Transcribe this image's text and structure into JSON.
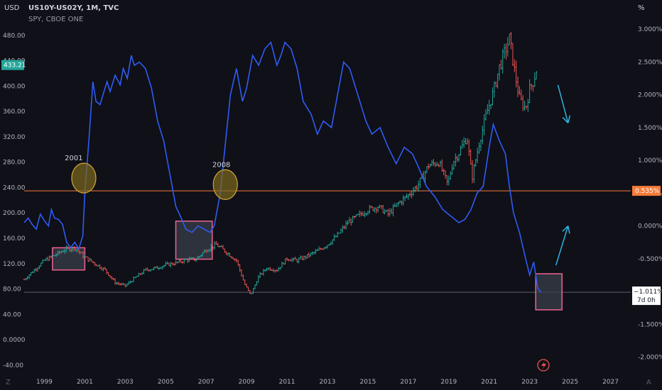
{
  "header": {
    "left_unit": "USD",
    "right_unit": "%",
    "symbol": "US10Y-US02Y, 1M, TVC",
    "sub_symbol": "SPY, CBOE ONE"
  },
  "corner_labels": {
    "bottom_left": "Z",
    "bottom_right": "A"
  },
  "price_badges": {
    "spy_last": "433.21",
    "level_line": "0.535%",
    "spread_last": "−1.011%",
    "countdown": "7d 0h"
  },
  "colors": {
    "background": "#0f1018",
    "spread_line": "#2f5cf5",
    "up_bar": "#26a69a",
    "down_bar": "#ef5350",
    "level_line": "#f57c3a",
    "circle_fill": "#7d6a1c",
    "circle_stroke": "#d4a53b",
    "box_stroke": "#f06292",
    "box_fill": "#3a3d4a",
    "arrow": "#2bb5e0",
    "badge_green": "#26a69a"
  },
  "annotations": [
    {
      "type": "text",
      "text": "2001"
    },
    {
      "type": "text",
      "text": "2008"
    },
    {
      "type": "icon",
      "name": "lightning-icon"
    }
  ],
  "chart_data": {
    "type": "line",
    "x_ticks": [
      "1999",
      "2001",
      "2003",
      "2005",
      "2007",
      "2009",
      "2011",
      "2013",
      "2015",
      "2017",
      "2019",
      "2021",
      "2023",
      "2025",
      "2027"
    ],
    "x_range": [
      1998.0,
      2028.0
    ],
    "y_left": {
      "label": "USD",
      "ticks": [
        "480.00",
        "440.00",
        "400.00",
        "360.00",
        "320.00",
        "280.00",
        "240.00",
        "200.00",
        "160.00",
        "120.00",
        "80.00",
        "40.00",
        "0.0000",
        "-40.00"
      ],
      "range": [
        -48,
        500
      ]
    },
    "y_right": {
      "label": "%",
      "ticks": [
        "3.000%",
        "2.500%",
        "2.000%",
        "1.500%",
        "1.000%",
        "0.500%",
        "0.000%",
        "-0.500%",
        "-1.000%",
        "-1.500%",
        "-2.000%"
      ],
      "range": [
        -2.2,
        3.1
      ]
    },
    "series": [
      {
        "name": "US10Y-US02Y",
        "axis": "right",
        "points": [
          [
            1998.0,
            0.05
          ],
          [
            1998.2,
            0.12
          ],
          [
            1998.4,
            0.02
          ],
          [
            1998.6,
            -0.05
          ],
          [
            1998.8,
            0.18
          ],
          [
            1999.0,
            0.08
          ],
          [
            1999.2,
            0.0
          ],
          [
            1999.35,
            0.25
          ],
          [
            1999.5,
            0.12
          ],
          [
            1999.7,
            0.1
          ],
          [
            1999.9,
            0.02
          ],
          [
            2000.1,
            -0.25
          ],
          [
            2000.3,
            -0.33
          ],
          [
            2000.5,
            -0.25
          ],
          [
            2000.7,
            -0.35
          ],
          [
            2000.9,
            -0.15
          ],
          [
            2001.0,
            0.5
          ],
          [
            2001.2,
            1.3
          ],
          [
            2001.4,
            2.2
          ],
          [
            2001.55,
            1.9
          ],
          [
            2001.75,
            1.85
          ],
          [
            2001.9,
            2.0
          ],
          [
            2002.1,
            2.2
          ],
          [
            2002.25,
            2.05
          ],
          [
            2002.5,
            2.3
          ],
          [
            2002.75,
            2.15
          ],
          [
            2002.9,
            2.4
          ],
          [
            2003.1,
            2.25
          ],
          [
            2003.3,
            2.6
          ],
          [
            2003.45,
            2.45
          ],
          [
            2003.7,
            2.5
          ],
          [
            2004.0,
            2.4
          ],
          [
            2004.3,
            2.1
          ],
          [
            2004.6,
            1.6
          ],
          [
            2004.9,
            1.3
          ],
          [
            2005.2,
            0.8
          ],
          [
            2005.5,
            0.3
          ],
          [
            2005.8,
            0.1
          ],
          [
            2006.0,
            -0.05
          ],
          [
            2006.3,
            -0.1
          ],
          [
            2006.6,
            0.0
          ],
          [
            2006.9,
            -0.05
          ],
          [
            2007.2,
            -0.1
          ],
          [
            2007.4,
            0.0
          ],
          [
            2007.7,
            0.5
          ],
          [
            2007.9,
            1.1
          ],
          [
            2008.2,
            2.0
          ],
          [
            2008.5,
            2.4
          ],
          [
            2008.8,
            1.9
          ],
          [
            2009.0,
            2.1
          ],
          [
            2009.3,
            2.6
          ],
          [
            2009.6,
            2.45
          ],
          [
            2009.9,
            2.7
          ],
          [
            2010.2,
            2.8
          ],
          [
            2010.5,
            2.45
          ],
          [
            2010.7,
            2.6
          ],
          [
            2010.9,
            2.8
          ],
          [
            2011.2,
            2.7
          ],
          [
            2011.5,
            2.4
          ],
          [
            2011.8,
            1.9
          ],
          [
            2012.2,
            1.7
          ],
          [
            2012.5,
            1.4
          ],
          [
            2012.8,
            1.6
          ],
          [
            2013.2,
            1.5
          ],
          [
            2013.5,
            2.0
          ],
          [
            2013.8,
            2.5
          ],
          [
            2014.1,
            2.4
          ],
          [
            2014.4,
            2.1
          ],
          [
            2014.7,
            1.8
          ],
          [
            2014.9,
            1.6
          ],
          [
            2015.2,
            1.4
          ],
          [
            2015.6,
            1.5
          ],
          [
            2016.0,
            1.2
          ],
          [
            2016.4,
            0.95
          ],
          [
            2016.8,
            1.2
          ],
          [
            2017.2,
            1.1
          ],
          [
            2017.5,
            0.9
          ],
          [
            2017.9,
            0.6
          ],
          [
            2018.3,
            0.45
          ],
          [
            2018.7,
            0.25
          ],
          [
            2019.1,
            0.15
          ],
          [
            2019.5,
            0.05
          ],
          [
            2019.8,
            0.1
          ],
          [
            2020.1,
            0.25
          ],
          [
            2020.4,
            0.5
          ],
          [
            2020.7,
            0.6
          ],
          [
            2021.0,
            1.2
          ],
          [
            2021.2,
            1.55
          ],
          [
            2021.5,
            1.3
          ],
          [
            2021.8,
            1.1
          ],
          [
            2022.0,
            0.6
          ],
          [
            2022.2,
            0.2
          ],
          [
            2022.5,
            -0.1
          ],
          [
            2022.8,
            -0.5
          ],
          [
            2023.0,
            -0.75
          ],
          [
            2023.2,
            -0.55
          ],
          [
            2023.4,
            -0.95
          ],
          [
            2023.55,
            -1.011
          ]
        ]
      },
      {
        "name": "SPY",
        "axis": "left",
        "style": "ohlc",
        "points": [
          [
            1998.0,
            95
          ],
          [
            1998.5,
            110
          ],
          [
            1999.0,
            125
          ],
          [
            1999.5,
            133
          ],
          [
            2000.0,
            142
          ],
          [
            2000.5,
            145
          ],
          [
            2001.0,
            130
          ],
          [
            2001.5,
            120
          ],
          [
            2002.0,
            110
          ],
          [
            2002.5,
            90
          ],
          [
            2003.0,
            85
          ],
          [
            2003.5,
            98
          ],
          [
            2004.0,
            110
          ],
          [
            2004.5,
            113
          ],
          [
            2005.0,
            118
          ],
          [
            2005.5,
            121
          ],
          [
            2006.0,
            126
          ],
          [
            2006.5,
            127
          ],
          [
            2007.0,
            142
          ],
          [
            2007.5,
            150
          ],
          [
            2008.0,
            138
          ],
          [
            2008.5,
            125
          ],
          [
            2008.9,
            88
          ],
          [
            2009.2,
            70
          ],
          [
            2009.6,
            100
          ],
          [
            2010.0,
            113
          ],
          [
            2010.5,
            110
          ],
          [
            2011.0,
            128
          ],
          [
            2011.5,
            125
          ],
          [
            2012.0,
            132
          ],
          [
            2012.5,
            140
          ],
          [
            2013.0,
            150
          ],
          [
            2013.5,
            165
          ],
          [
            2014.0,
            185
          ],
          [
            2014.5,
            195
          ],
          [
            2015.0,
            205
          ],
          [
            2015.5,
            210
          ],
          [
            2016.0,
            198
          ],
          [
            2016.5,
            215
          ],
          [
            2017.0,
            228
          ],
          [
            2017.5,
            245
          ],
          [
            2018.0,
            275
          ],
          [
            2018.5,
            280
          ],
          [
            2018.95,
            245
          ],
          [
            2019.2,
            280
          ],
          [
            2019.5,
            295
          ],
          [
            2019.9,
            320
          ],
          [
            2020.15,
            255
          ],
          [
            2020.5,
            310
          ],
          [
            2020.9,
            360
          ],
          [
            2021.2,
            390
          ],
          [
            2021.5,
            430
          ],
          [
            2021.9,
            465
          ],
          [
            2022.0,
            475
          ],
          [
            2022.3,
            415
          ],
          [
            2022.5,
            380
          ],
          [
            2022.8,
            365
          ],
          [
            2023.0,
            395
          ],
          [
            2023.2,
            410
          ],
          [
            2023.4,
            433.21
          ]
        ]
      }
    ],
    "reference_lines": [
      {
        "axis": "right",
        "value": 0.535,
        "label": "0.535%"
      },
      {
        "axis": "right",
        "value": -1.011,
        "label": "−1.011%"
      }
    ],
    "annotations": [
      {
        "type": "text",
        "label": "2001",
        "x": 2000.5,
        "y_right": 1.0
      },
      {
        "type": "text",
        "label": "2008",
        "x": 2007.8,
        "y_right": 0.9
      },
      {
        "type": "circle",
        "x": 2000.95,
        "y_right": 0.73
      },
      {
        "type": "circle",
        "x": 2007.95,
        "y_right": 0.63
      },
      {
        "type": "box",
        "x": [
          1999.4,
          2001.0
        ],
        "y_left": [
          110,
          145
        ]
      },
      {
        "type": "box",
        "x": [
          2005.5,
          2007.3
        ],
        "y_left": [
          127,
          187
        ]
      },
      {
        "type": "box",
        "x": [
          2023.3,
          2024.6
        ],
        "y_right": [
          -1.28,
          -0.73
        ]
      },
      {
        "type": "arrow",
        "from": [
          2024.4,
          2.15
        ],
        "to": [
          2024.9,
          1.57
        ]
      },
      {
        "type": "arrow",
        "from": [
          2024.3,
          -0.6
        ],
        "to": [
          2024.9,
          0.0
        ]
      }
    ],
    "grid": false,
    "legend": "top-left"
  }
}
